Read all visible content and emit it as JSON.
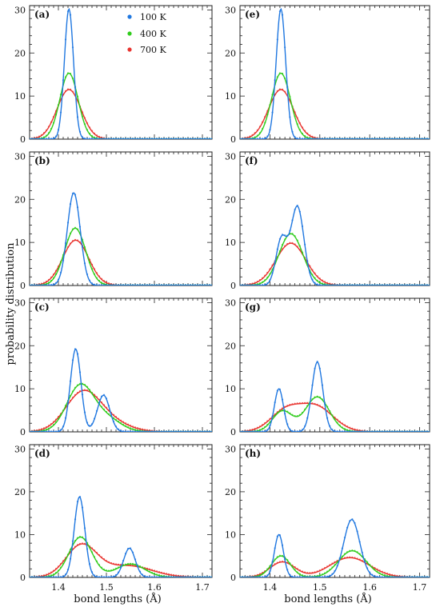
{
  "figure": {
    "xlabel": "bond lengths (Å)",
    "ylabel": "probability distribution",
    "x_ticks": [
      "1.4",
      "1.5",
      "1.6",
      "1.7"
    ],
    "y_ticks": [
      "0",
      "10",
      "20",
      "30"
    ],
    "legend": [
      {
        "label": "100 K",
        "color": "#1f77e0"
      },
      {
        "label": "400 K",
        "color": "#2ecc1a"
      },
      {
        "label": "700 K",
        "color": "#e8332e"
      }
    ]
  },
  "chart_data": [
    {
      "type": "line",
      "panel_label": "(a)",
      "xlim": [
        1.34,
        1.72
      ],
      "ylim": [
        0,
        31
      ],
      "x_ticks": [
        1.4,
        1.5,
        1.6,
        1.7
      ],
      "y_ticks": [
        0,
        10,
        20,
        30
      ],
      "series": [
        {
          "name": "100 K",
          "color": "#1f77e0",
          "peaks": [
            {
              "center": 1.422,
              "height": 30.2,
              "sigma": 0.0095
            }
          ]
        },
        {
          "name": "400 K",
          "color": "#2ecc1a",
          "peaks": [
            {
              "center": 1.422,
              "height": 15.3,
              "sigma": 0.019
            }
          ]
        },
        {
          "name": "700 K",
          "color": "#e8332e",
          "peaks": [
            {
              "center": 1.422,
              "height": 11.5,
              "sigma": 0.025
            }
          ]
        }
      ]
    },
    {
      "type": "line",
      "panel_label": "(e)",
      "xlim": [
        1.34,
        1.72
      ],
      "ylim": [
        0,
        31
      ],
      "x_ticks": [
        1.4,
        1.5,
        1.6,
        1.7
      ],
      "y_ticks": [
        0,
        10,
        20,
        30
      ],
      "series": [
        {
          "name": "100 K",
          "color": "#1f77e0",
          "peaks": [
            {
              "center": 1.422,
              "height": 30.2,
              "sigma": 0.0095
            }
          ]
        },
        {
          "name": "400 K",
          "color": "#2ecc1a",
          "peaks": [
            {
              "center": 1.422,
              "height": 15.3,
              "sigma": 0.019
            }
          ]
        },
        {
          "name": "700 K",
          "color": "#e8332e",
          "peaks": [
            {
              "center": 1.422,
              "height": 11.5,
              "sigma": 0.025
            }
          ]
        }
      ]
    },
    {
      "type": "line",
      "panel_label": "(b)",
      "xlim": [
        1.34,
        1.72
      ],
      "ylim": [
        0,
        31
      ],
      "x_ticks": [
        1.4,
        1.5,
        1.6,
        1.7
      ],
      "y_ticks": [
        0,
        10,
        20,
        30
      ],
      "series": [
        {
          "name": "100 K",
          "color": "#1f77e0",
          "peaks": [
            {
              "center": 1.432,
              "height": 21.5,
              "sigma": 0.0135
            }
          ]
        },
        {
          "name": "400 K",
          "color": "#2ecc1a",
          "peaks": [
            {
              "center": 1.435,
              "height": 13.3,
              "sigma": 0.022
            }
          ]
        },
        {
          "name": "700 K",
          "color": "#e8332e",
          "peaks": [
            {
              "center": 1.436,
              "height": 10.5,
              "sigma": 0.027
            }
          ]
        }
      ]
    },
    {
      "type": "line",
      "panel_label": "(f)",
      "xlim": [
        1.34,
        1.72
      ],
      "ylim": [
        0,
        31
      ],
      "x_ticks": [
        1.4,
        1.5,
        1.6,
        1.7
      ],
      "y_ticks": [
        0,
        10,
        20,
        30
      ],
      "series": [
        {
          "name": "100 K",
          "color": "#1f77e0",
          "peaks": [
            {
              "center": 1.423,
              "height": 10.6,
              "sigma": 0.011
            },
            {
              "center": 1.455,
              "height": 18.3,
              "sigma": 0.013
            }
          ]
        },
        {
          "name": "400 K",
          "color": "#2ecc1a",
          "peaks": [
            {
              "center": 1.442,
              "height": 12.0,
              "sigma": 0.024
            }
          ]
        },
        {
          "name": "700 K",
          "color": "#e8332e",
          "peaks": [
            {
              "center": 1.442,
              "height": 9.8,
              "sigma": 0.03
            }
          ]
        }
      ]
    },
    {
      "type": "line",
      "panel_label": "(c)",
      "xlim": [
        1.34,
        1.72
      ],
      "ylim": [
        0,
        31
      ],
      "x_ticks": [
        1.4,
        1.5,
        1.6,
        1.7
      ],
      "y_ticks": [
        0,
        10,
        20,
        30
      ],
      "series": [
        {
          "name": "100 K",
          "color": "#1f77e0",
          "peaks": [
            {
              "center": 1.436,
              "height": 19.2,
              "sigma": 0.011
            },
            {
              "center": 1.494,
              "height": 8.5,
              "sigma": 0.013
            }
          ]
        },
        {
          "name": "400 K",
          "color": "#2ecc1a",
          "peaks": [
            {
              "center": 1.445,
              "height": 10.5,
              "sigma": 0.028
            },
            {
              "center": 1.5,
              "height": 3.0,
              "sigma": 0.03
            }
          ]
        },
        {
          "name": "700 K",
          "color": "#e8332e",
          "peaks": [
            {
              "center": 1.45,
              "height": 8.7,
              "sigma": 0.036
            },
            {
              "center": 1.505,
              "height": 2.2,
              "sigma": 0.04
            }
          ]
        }
      ]
    },
    {
      "type": "line",
      "panel_label": "(g)",
      "xlim": [
        1.34,
        1.72
      ],
      "ylim": [
        0,
        31
      ],
      "x_ticks": [
        1.4,
        1.5,
        1.6,
        1.7
      ],
      "y_ticks": [
        0,
        10,
        20,
        30
      ],
      "series": [
        {
          "name": "100 K",
          "color": "#1f77e0",
          "peaks": [
            {
              "center": 1.418,
              "height": 10.0,
              "sigma": 0.009
            },
            {
              "center": 1.495,
              "height": 16.2,
              "sigma": 0.011
            }
          ]
        },
        {
          "name": "400 K",
          "color": "#2ecc1a",
          "peaks": [
            {
              "center": 1.425,
              "height": 4.8,
              "sigma": 0.02
            },
            {
              "center": 1.495,
              "height": 8.1,
              "sigma": 0.024
            }
          ]
        },
        {
          "name": "700 K",
          "color": "#e8332e",
          "peaks": [
            {
              "center": 1.43,
              "height": 4.5,
              "sigma": 0.03
            },
            {
              "center": 1.492,
              "height": 5.8,
              "sigma": 0.035
            }
          ]
        }
      ]
    },
    {
      "type": "line",
      "panel_label": "(d)",
      "xlim": [
        1.34,
        1.72
      ],
      "ylim": [
        0,
        31
      ],
      "x_ticks": [
        1.4,
        1.5,
        1.6,
        1.7
      ],
      "y_ticks": [
        0,
        10,
        20,
        30
      ],
      "series": [
        {
          "name": "100 K",
          "color": "#1f77e0",
          "peaks": [
            {
              "center": 1.444,
              "height": 18.8,
              "sigma": 0.011
            },
            {
              "center": 1.548,
              "height": 6.8,
              "sigma": 0.012
            }
          ]
        },
        {
          "name": "400 K",
          "color": "#2ecc1a",
          "peaks": [
            {
              "center": 1.446,
              "height": 9.4,
              "sigma": 0.024
            },
            {
              "center": 1.55,
              "height": 3.1,
              "sigma": 0.03
            }
          ]
        },
        {
          "name": "700 K",
          "color": "#e8332e",
          "peaks": [
            {
              "center": 1.448,
              "height": 7.4,
              "sigma": 0.032
            },
            {
              "center": 1.545,
              "height": 2.7,
              "sigma": 0.05
            }
          ]
        }
      ]
    },
    {
      "type": "line",
      "panel_label": "(h)",
      "xlim": [
        1.34,
        1.72
      ],
      "ylim": [
        0,
        31
      ],
      "x_ticks": [
        1.4,
        1.5,
        1.6,
        1.7
      ],
      "y_ticks": [
        0,
        10,
        20,
        30
      ],
      "series": [
        {
          "name": "100 K",
          "color": "#1f77e0",
          "peaks": [
            {
              "center": 1.418,
              "height": 10.0,
              "sigma": 0.009
            },
            {
              "center": 1.564,
              "height": 13.5,
              "sigma": 0.016
            }
          ]
        },
        {
          "name": "400 K",
          "color": "#2ecc1a",
          "peaks": [
            {
              "center": 1.422,
              "height": 5.0,
              "sigma": 0.019
            },
            {
              "center": 1.565,
              "height": 6.2,
              "sigma": 0.028
            }
          ]
        },
        {
          "name": "700 K",
          "color": "#e8332e",
          "peaks": [
            {
              "center": 1.425,
              "height": 3.6,
              "sigma": 0.025
            },
            {
              "center": 1.56,
              "height": 4.6,
              "sigma": 0.04
            }
          ]
        }
      ]
    }
  ]
}
